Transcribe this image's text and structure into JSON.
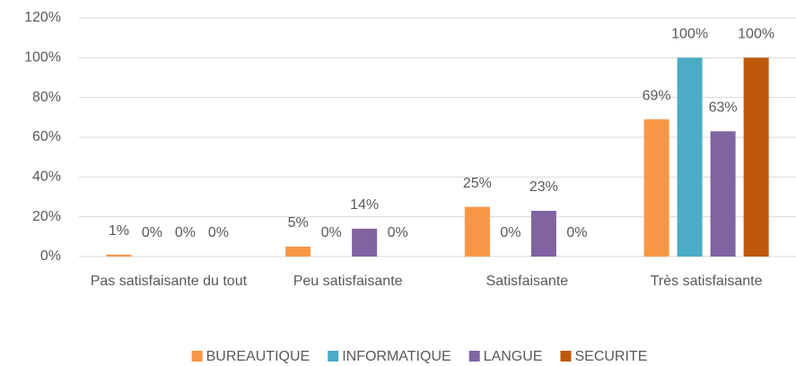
{
  "chart_data": {
    "type": "bar",
    "categories": [
      "Pas satisfaisante du tout",
      "Peu satisfaisante",
      "Satisfaisante",
      "Très satisfaisante"
    ],
    "series": [
      {
        "name": "BUREAUTIQUE",
        "color": "#f79646",
        "values": [
          1,
          5,
          25,
          69
        ],
        "value_labels": [
          "1%",
          "5%",
          "25%",
          "69%"
        ]
      },
      {
        "name": "INFORMATIQUE",
        "color": "#4bacc6",
        "values": [
          0,
          0,
          0,
          100
        ],
        "value_labels": [
          "0%",
          "0%",
          "0%",
          "100%"
        ]
      },
      {
        "name": "LANGUE",
        "color": "#8064a2",
        "values": [
          0,
          14,
          23,
          63
        ],
        "value_labels": [
          "0%",
          "14%",
          "23%",
          "63%"
        ]
      },
      {
        "name": "SECURITE",
        "color": "#c0580c",
        "values": [
          0,
          0,
          0,
          100
        ],
        "value_labels": [
          "0%",
          "0%",
          "0%",
          "100%"
        ]
      }
    ],
    "ylim": [
      0,
      120
    ],
    "yticks": [
      {
        "value": 0,
        "label": "0%"
      },
      {
        "value": 20,
        "label": "20%"
      },
      {
        "value": 40,
        "label": "40%"
      },
      {
        "value": 60,
        "label": "60%"
      },
      {
        "value": 80,
        "label": "80%"
      },
      {
        "value": 100,
        "label": "100%"
      },
      {
        "value": 120,
        "label": "120%"
      }
    ],
    "grid": true,
    "legend": "bottom"
  }
}
